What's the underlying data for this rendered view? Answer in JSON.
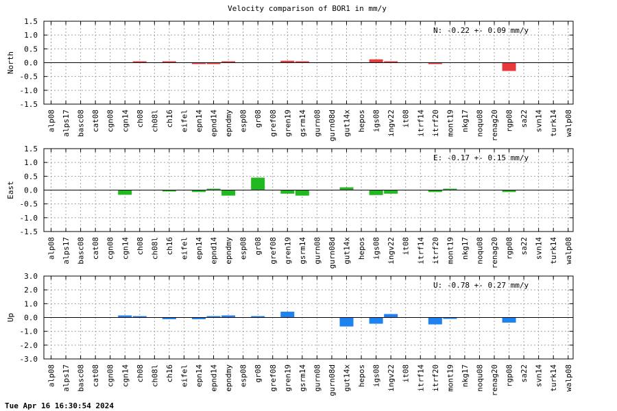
{
  "title": "Velocity comparison of BOR1 in mm/y",
  "footer": "Tue Apr 16 16:30:54 2024",
  "chart_data": {
    "type": "bar",
    "title": "Velocity comparison of BOR1 in mm/y",
    "grid": true,
    "categories": [
      "alp08",
      "alps17",
      "basc08",
      "cat08",
      "cgn08",
      "cgn14",
      "ch08",
      "ch08l",
      "ch16",
      "eifel",
      "epn14",
      "epnd14",
      "epndmy",
      "esp08",
      "gr08",
      "gref08",
      "gren19",
      "gsrm14",
      "gurn08",
      "gurn08d",
      "gut14x",
      "hepos",
      "igs08",
      "ingv22",
      "it08",
      "itrf14",
      "itrf20",
      "mont19",
      "nkg17",
      "noqu08",
      "renag20",
      "rgp08",
      "sa22",
      "svn14",
      "turk14",
      "walp08"
    ],
    "panels": [
      {
        "ylabel": "North",
        "color": "#e8383b",
        "ylim": [
          -1.5,
          1.5
        ],
        "yticks": [
          "1.5",
          "1.0",
          "0.5",
          "0.0",
          "-0.5",
          "-1.0",
          "-1.5"
        ],
        "ytick_values": [
          1.5,
          1.0,
          0.5,
          0.0,
          -0.5,
          -1.0,
          -1.5
        ],
        "annotation": "N:  -0.22 +-  0.09 mm/y",
        "values": [
          null,
          null,
          null,
          null,
          null,
          null,
          0.02,
          null,
          0.02,
          null,
          -0.03,
          -0.05,
          0.02,
          null,
          null,
          null,
          0.07,
          0.05,
          null,
          null,
          null,
          null,
          0.12,
          0.05,
          null,
          null,
          -0.05,
          null,
          null,
          null,
          null,
          -0.3,
          null,
          null,
          null,
          null
        ]
      },
      {
        "ylabel": "East",
        "color": "#22b822",
        "ylim": [
          -1.5,
          1.5
        ],
        "yticks": [
          "1.5",
          "1.0",
          "0.5",
          "0.0",
          "-0.5",
          "-1.0",
          "-1.5"
        ],
        "ytick_values": [
          1.5,
          1.0,
          0.5,
          0.0,
          -0.5,
          -1.0,
          -1.5
        ],
        "annotation": "E:  -0.17 +-  0.15 mm/y",
        "values": [
          null,
          null,
          null,
          null,
          null,
          -0.17,
          null,
          null,
          -0.03,
          null,
          -0.07,
          0.02,
          -0.2,
          null,
          0.45,
          null,
          -0.13,
          -0.2,
          null,
          null,
          0.1,
          null,
          -0.18,
          -0.13,
          null,
          null,
          -0.07,
          0.05,
          null,
          null,
          null,
          -0.07,
          null,
          null,
          null,
          null
        ]
      },
      {
        "ylabel": "Up",
        "color": "#1e82f0",
        "ylim": [
          -3.0,
          3.0
        ],
        "yticks": [
          "3.0",
          "2.0",
          "1.0",
          "0.0",
          "-1.0",
          "-2.0",
          "-3.0"
        ],
        "ytick_values": [
          3.0,
          2.0,
          1.0,
          0.0,
          -1.0,
          -2.0,
          -3.0
        ],
        "annotation": "U:  -0.78 +-  0.27 mm/y",
        "values": [
          null,
          null,
          null,
          null,
          null,
          0.15,
          0.05,
          null,
          -0.12,
          null,
          -0.12,
          0.1,
          0.15,
          null,
          0.1,
          null,
          0.42,
          null,
          null,
          null,
          -0.65,
          null,
          -0.45,
          0.25,
          null,
          null,
          -0.5,
          -0.05,
          null,
          null,
          null,
          -0.37,
          null,
          null,
          null,
          null
        ]
      }
    ]
  }
}
